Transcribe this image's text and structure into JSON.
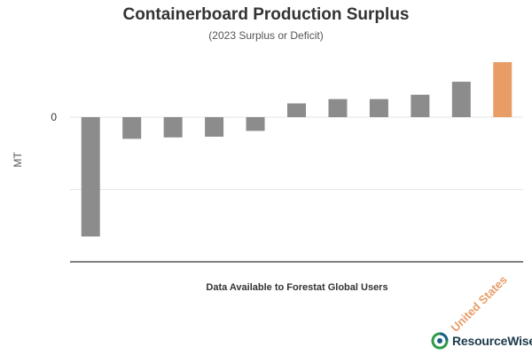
{
  "chart_data": {
    "type": "bar",
    "title": "Containerboard Production Surplus",
    "subtitle": "(2023 Surplus or Deficit)",
    "ylabel": "MT",
    "xlabel": "",
    "y_tick_labels": [
      "0"
    ],
    "ylim": [
      -2.0,
      0.9
    ],
    "grid": true,
    "series": [
      {
        "values": [
          -1.65,
          -0.3,
          -0.28,
          -0.27,
          -0.19,
          0.19,
          0.25,
          0.25,
          0.31,
          0.49,
          0.76
        ]
      }
    ],
    "categories": [
      "",
      "",
      "",
      "",
      "",
      "",
      "",
      "",
      "",
      "",
      "United States"
    ],
    "highlight_index": 10,
    "colors": {
      "bar": "#8c8c8d",
      "highlight": "#e89c66",
      "grid": "#e6e6e6",
      "axis": "#333333"
    }
  },
  "footer_note": "Data Available to Forestat Global Users",
  "logo": {
    "text": "ResourceWise",
    "icon": "resourcewise-logo-icon"
  }
}
